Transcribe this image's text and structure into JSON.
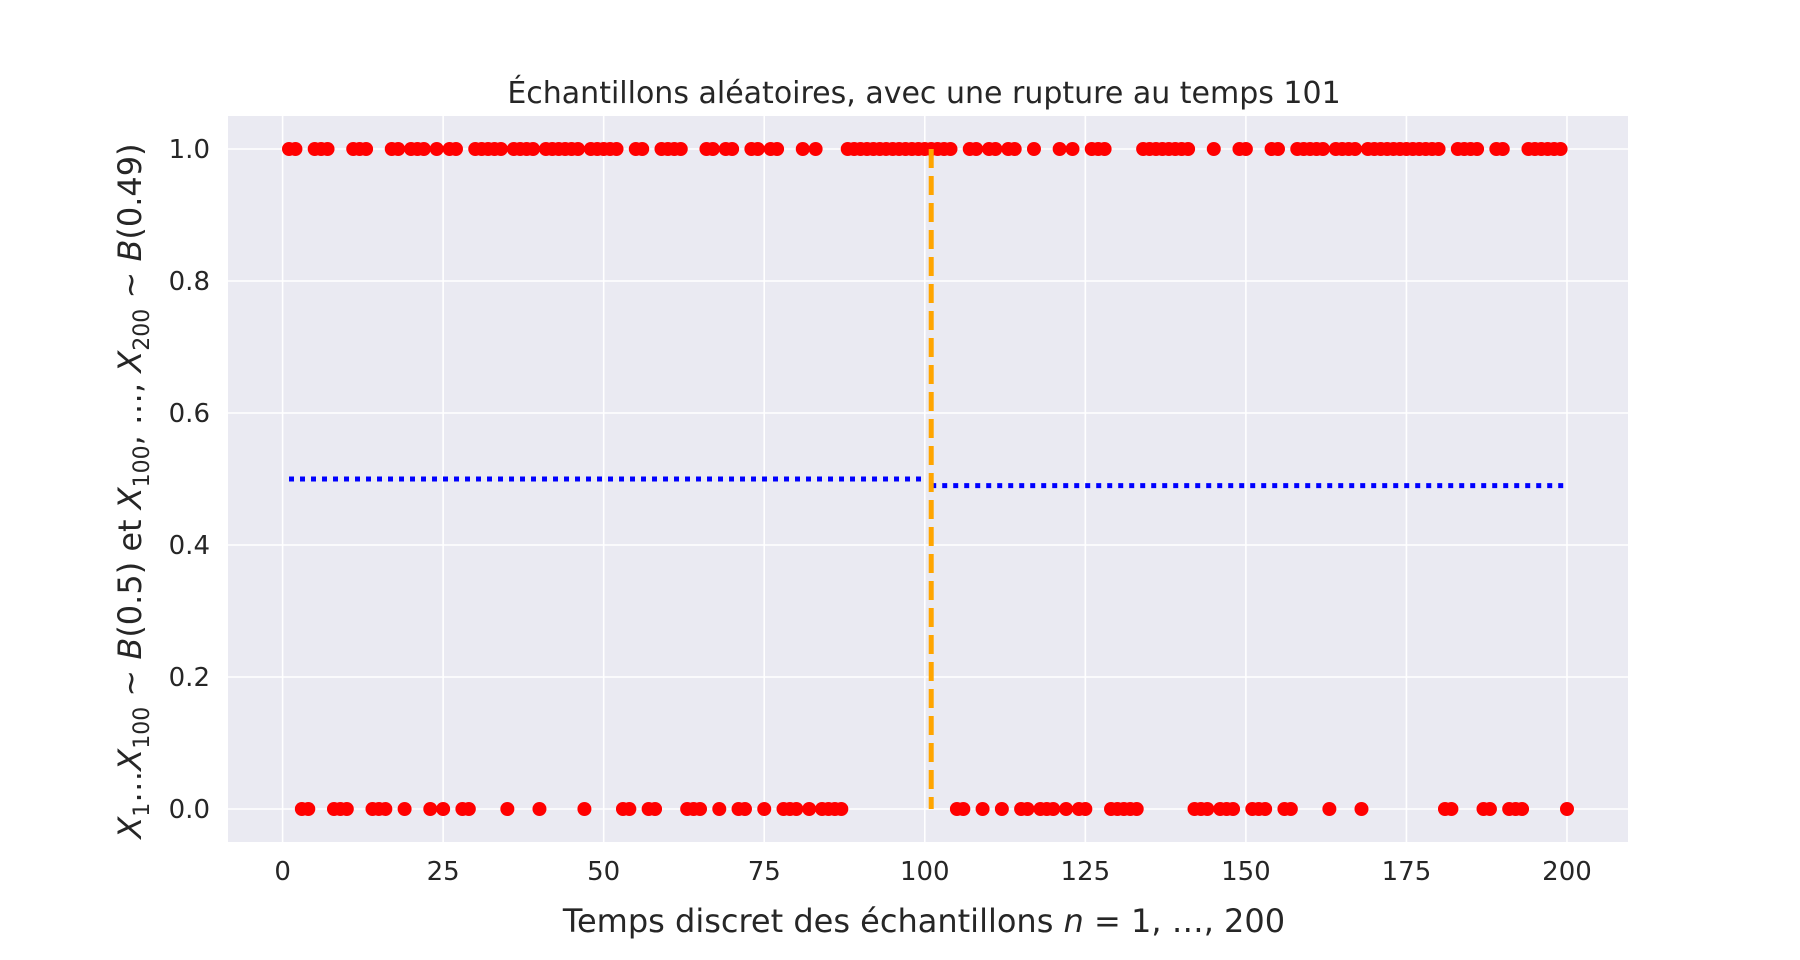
{
  "chart_data": {
    "type": "scatter",
    "title": "Échantillons aléatoires, avec une rupture au temps 101",
    "xlabel": "Temps discret des échantillons n = 1, …, 200",
    "ylabel": "X1…X100 ~ B(0.5) et X100, …, X200 ~ B(0.49)",
    "xlim": [
      -8.5,
      209.5
    ],
    "ylim": [
      -0.05,
      1.05
    ],
    "xticks": [
      0,
      25,
      50,
      75,
      100,
      125,
      150,
      175,
      200
    ],
    "yticks": [
      0.0,
      0.2,
      0.4,
      0.6,
      0.8,
      1.0
    ],
    "ytick_labels": [
      "0.0",
      "0.2",
      "0.4",
      "0.6",
      "0.8",
      "1.0"
    ],
    "grid": true,
    "series": [
      {
        "color": "#ff0000",
        "marker": "circle",
        "x_ones": [
          1,
          2,
          5,
          6,
          7,
          11,
          12,
          13,
          17,
          18,
          20,
          21,
          22,
          24,
          26,
          27,
          30,
          31,
          32,
          33,
          34,
          36,
          37,
          38,
          39,
          41,
          42,
          43,
          44,
          45,
          46,
          48,
          49,
          50,
          51,
          52,
          55,
          56,
          59,
          60,
          61,
          62,
          66,
          67,
          69,
          70,
          73,
          74,
          76,
          77,
          81,
          83,
          88,
          89,
          90,
          91,
          92,
          93,
          94,
          95,
          96,
          97,
          98,
          99,
          100,
          101,
          102,
          103,
          104,
          107,
          108,
          110,
          111,
          113,
          114,
          117,
          121,
          123,
          126,
          127,
          128,
          134,
          135,
          136,
          137,
          138,
          139,
          140,
          141,
          145,
          149,
          150,
          154,
          155,
          158,
          159,
          160,
          161,
          162,
          164,
          165,
          166,
          167,
          169,
          170,
          171,
          172,
          173,
          174,
          175,
          176,
          177,
          178,
          179,
          180,
          183,
          184,
          185,
          186,
          189,
          190,
          194,
          195,
          196,
          197,
          198,
          199
        ],
        "x_zeros": [
          3,
          4,
          8,
          9,
          10,
          14,
          15,
          16,
          19,
          23,
          25,
          28,
          29,
          35,
          40,
          47,
          53,
          54,
          57,
          58,
          63,
          64,
          65,
          68,
          71,
          72,
          75,
          78,
          79,
          80,
          82,
          84,
          85,
          86,
          87,
          105,
          106,
          109,
          112,
          115,
          116,
          118,
          119,
          120,
          122,
          124,
          125,
          129,
          130,
          131,
          132,
          133,
          142,
          143,
          144,
          146,
          147,
          148,
          151,
          152,
          153,
          156,
          157,
          163,
          168,
          181,
          182,
          187,
          188,
          191,
          192,
          193,
          200
        ]
      }
    ],
    "mean_lines": [
      {
        "color": "#0000ff",
        "style": "dotted",
        "x": [
          1,
          100
        ],
        "y": 0.5
      },
      {
        "color": "#0000ff",
        "style": "dotted",
        "x": [
          101,
          200
        ],
        "y": 0.49
      }
    ],
    "change_point": {
      "color": "#ffa500",
      "style": "dashed",
      "x": 101
    }
  }
}
